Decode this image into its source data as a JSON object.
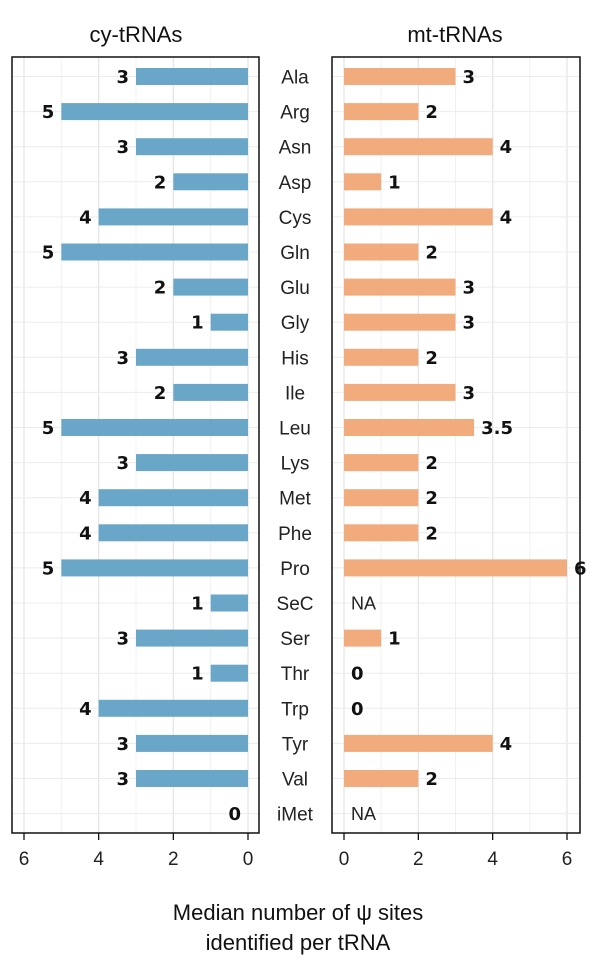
{
  "chart_data": {
    "type": "bar",
    "orientation": "horizontal",
    "xlabel": "Median number of ψ sites identified per tRNA",
    "xlabel_lines": [
      "Median number of ψ sites",
      "identified per tRNA"
    ],
    "categories": [
      "Ala",
      "Arg",
      "Asn",
      "Asp",
      "Cys",
      "Gln",
      "Glu",
      "Gly",
      "His",
      "Ile",
      "Leu",
      "Lys",
      "Met",
      "Phe",
      "Pro",
      "SeC",
      "Ser",
      "Thr",
      "Trp",
      "Tyr",
      "Val",
      "iMet"
    ],
    "grid": true,
    "panels": [
      {
        "title": "cy-tRNAs",
        "color": "#6aa6c7",
        "direction": "reversed",
        "xlim": [
          6,
          0
        ],
        "ticks": [
          6,
          4,
          2,
          0
        ],
        "values": [
          3,
          5,
          3,
          2,
          4,
          5,
          2,
          1,
          3,
          2,
          5,
          3,
          4,
          4,
          5,
          1,
          3,
          1,
          4,
          3,
          3,
          0
        ],
        "labels": [
          "3",
          "5",
          "3",
          "2",
          "4",
          "5",
          "2",
          "1",
          "3",
          "2",
          "5",
          "3",
          "4",
          "4",
          "5",
          "1",
          "3",
          "1",
          "4",
          "3",
          "3",
          "0"
        ]
      },
      {
        "title": "mt-tRNAs",
        "color": "#f2ab7c",
        "direction": "normal",
        "xlim": [
          0,
          6
        ],
        "ticks": [
          0,
          2,
          4,
          6
        ],
        "values": [
          3,
          2,
          4,
          1,
          4,
          2,
          3,
          3,
          2,
          3,
          3.5,
          2,
          2,
          2,
          6,
          null,
          1,
          0,
          0,
          4,
          2,
          null
        ],
        "labels": [
          "3",
          "2",
          "4",
          "1",
          "4",
          "2",
          "3",
          "3",
          "2",
          "3",
          "3.5",
          "2",
          "2",
          "2",
          "6",
          "NA",
          "1",
          "0",
          "0",
          "4",
          "2",
          "NA"
        ]
      }
    ]
  }
}
